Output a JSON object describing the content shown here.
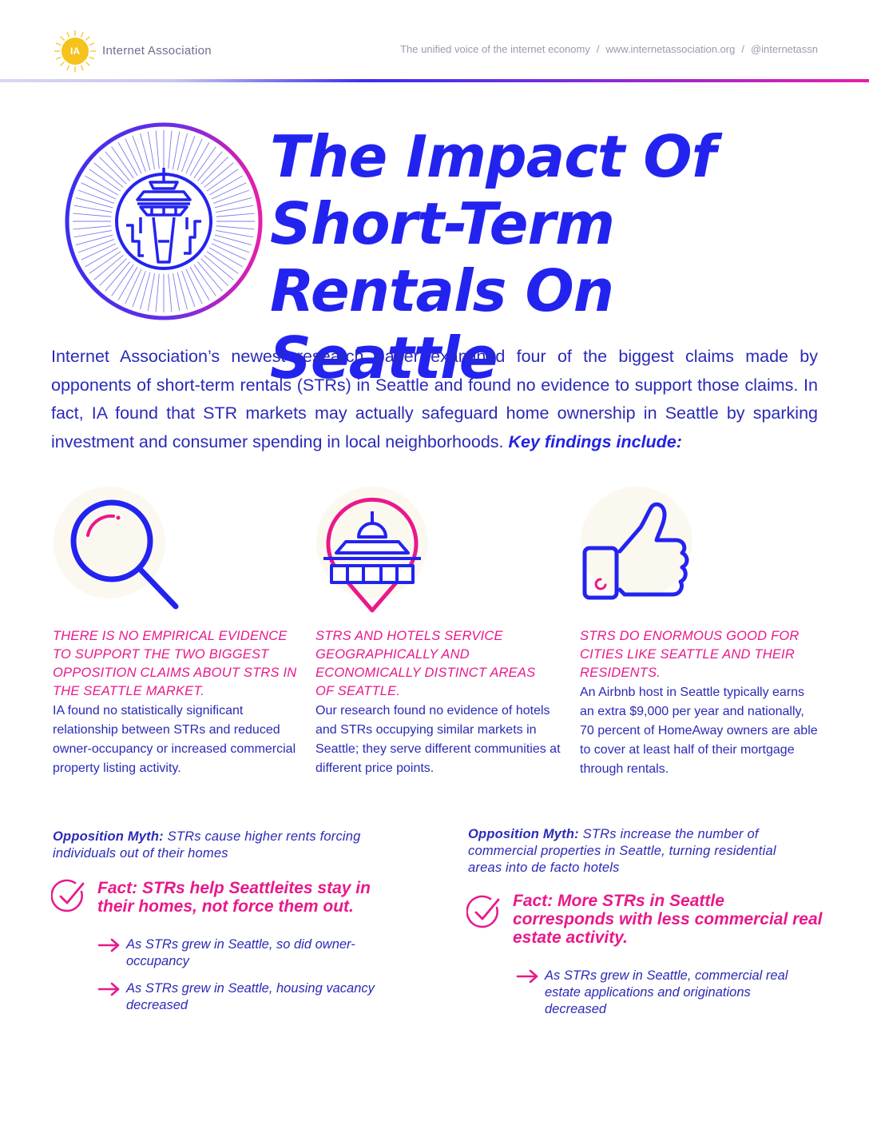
{
  "header": {
    "logo_text": "IA",
    "org_name": "Internet Association",
    "tagline": "The unified voice of the internet economy",
    "website": "www.internetassociation.org",
    "handle": "@internetassn",
    "separator": "/"
  },
  "title": {
    "line1": "The Impact Of",
    "line2": "Short-Term",
    "line3": "Rentals On Seattle"
  },
  "intro": {
    "text": "Internet Association’s newest research paper examined four of the biggest claims made by opponents of short-term rentals (STRs) in Seattle and found no evidence to support those claims. In fact, IA found that STR markets may actually safeguard home ownership in Seattle by sparking investment and consumer spending in local neighborhoods. ",
    "key_findings": "Key findings include:"
  },
  "icons": {
    "left": "magnifying-glass-icon",
    "middle": "map-pin-space-needle-icon",
    "right": "thumbs-up-icon"
  },
  "findings": [
    {
      "heading": "There is no empirical evidence to support the two biggest opposition claims about STRs in the Seattle market.",
      "body": "IA found no statistically significant relationship between STRs and reduced owner-occupancy or increased commercial property listing activity."
    },
    {
      "heading": "STRs and hotels service geographically and economically distinct areas of Seattle.",
      "body": "Our research found no evidence of hotels and STRs occupying similar markets in Seattle; they serve different communities at different price points."
    },
    {
      "heading": "STRs do enormous good for cities like Seattle and their residents.",
      "body": "An Airbnb host in Seattle typically earns an extra $9,000 per year and nationally, 70 percent of HomeAway owners are able to cover at least half of their mortgage through rentals."
    }
  ],
  "myths": [
    {
      "label": "Opposition Myth:",
      "text": " STRs cause higher rents forcing individuals out of their homes",
      "fact": "Fact: STRs help Seattleites stay in their homes, not force them out.",
      "bullets": [
        "As STRs grew in Seattle, so did owner-occupancy",
        "As STRs grew in Seattle, housing vacancy decreased"
      ]
    },
    {
      "label": "Opposition Myth:",
      "text": " STRs increase the number of commercial properties in Seattle, turning residential areas into de facto hotels",
      "fact": "Fact: More STRs in Seattle corresponds with less commercial real estate activity.",
      "bullets": [
        "As STRs grew in Seattle, commercial real estate applications and originations decreased"
      ]
    }
  ],
  "colors": {
    "brand_blue": "#2323f0",
    "brand_pink": "#e8198b",
    "logo_yellow": "#f6c21c"
  }
}
